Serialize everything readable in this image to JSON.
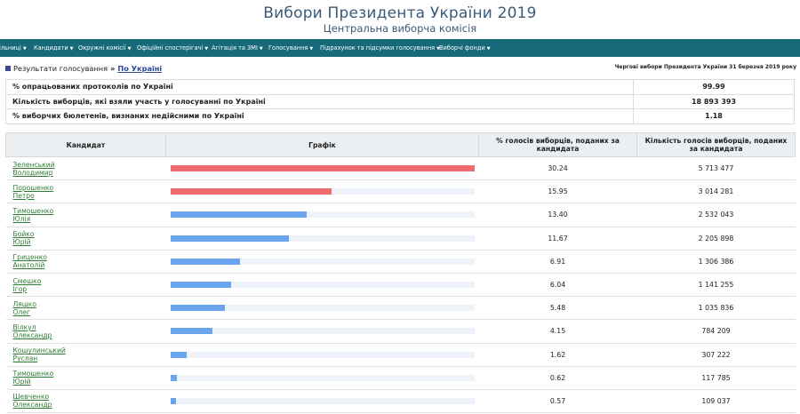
{
  "header": {
    "title": "Вибори Президента України 2019",
    "subtitle": "Центральна виборча комісія"
  },
  "nav": [
    "ільниці",
    "Кандидати",
    "Окружні комісії",
    "Офіційні спостерігачі",
    "Агітація та ЗМІ",
    "Голосування",
    "Підрахунок та підсумки голосування",
    "Виборчі фонди"
  ],
  "breadcrumb": {
    "root": "Результати голосування",
    "sep": "»",
    "current": "По Україні"
  },
  "election_note": "Чергові вибори Президента України 31 березня 2019 року",
  "stats": [
    {
      "label": "% опрацьованих протоколів по Україні",
      "value": "99.99"
    },
    {
      "label": "Кількість виборців, які взяли участь у голосуванні по Україні",
      "value": "18 893 393"
    },
    {
      "label": "% виборчих бюлетенів, визнаних недійсними по Україні",
      "value": "1.18"
    }
  ],
  "table": {
    "headers": {
      "candidate": "Кандидат",
      "graph": "Графік",
      "pct": "% голосів виборців, поданих за кандидата",
      "count": "Кількість голосів виборців, поданих за кандидата"
    },
    "colors": {
      "top": "#f06b6b",
      "other": "#6aa4ec"
    },
    "rows": [
      {
        "first": "Зеленський",
        "last": "Володимир",
        "pct": "30.24",
        "count": "5 713 477",
        "share": 1.0,
        "top": true
      },
      {
        "first": "Порошенко",
        "last": "Петро",
        "pct": "15.95",
        "count": "3 014 281",
        "share": 0.53,
        "top": true
      },
      {
        "first": "Тимошенко",
        "last": "Юлія",
        "pct": "13.40",
        "count": "2 532 043",
        "share": 0.45,
        "top": false
      },
      {
        "first": "Бойко",
        "last": "Юрій",
        "pct": "11.67",
        "count": "2 205 898",
        "share": 0.39,
        "top": false
      },
      {
        "first": "Гриценко",
        "last": "Анатолій",
        "pct": "6.91",
        "count": "1 306 386",
        "share": 0.23,
        "top": false
      },
      {
        "first": "Смешко",
        "last": "Ігор",
        "pct": "6.04",
        "count": "1 141 255",
        "share": 0.2,
        "top": false
      },
      {
        "first": "Ляшко",
        "last": "Олег",
        "pct": "5.48",
        "count": "1 035 836",
        "share": 0.18,
        "top": false
      },
      {
        "first": "Вілкул",
        "last": "Олександр",
        "pct": "4.15",
        "count": "784 209",
        "share": 0.14,
        "top": false
      },
      {
        "first": "Кошулинський",
        "last": "Руслан",
        "pct": "1.62",
        "count": "307 222",
        "share": 0.055,
        "top": false
      },
      {
        "first": "Тимошенко",
        "last": "Юрій",
        "pct": "0.62",
        "count": "117 785",
        "share": 0.022,
        "top": false
      },
      {
        "first": "Шевченко",
        "last": "Олександр",
        "pct": "0.57",
        "count": "109 037",
        "share": 0.02,
        "top": false
      }
    ]
  }
}
